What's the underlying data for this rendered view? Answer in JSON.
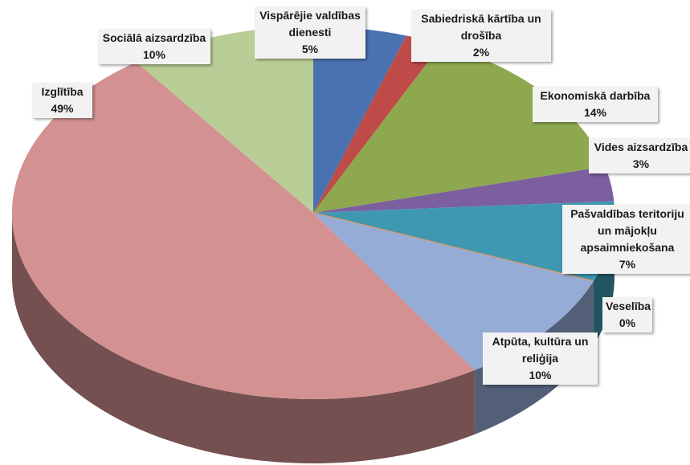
{
  "chart_data": {
    "type": "pie",
    "categories": [
      "Vispārējie valdības dienesti",
      "Sabiedriskā kārtība un drošība",
      "Ekonomiskā darbība",
      "Vides aizsardzība",
      "Pašvaldības teritoriju un mājokļu apsaimniekošana",
      "Veselība",
      "Atpūta, kultūra un reliģija",
      "Izglītība",
      "Sociālā aizsardzība"
    ],
    "values": [
      5,
      2,
      14,
      3,
      7,
      0,
      10,
      49,
      10
    ],
    "value_labels": [
      "5%",
      "2%",
      "14%",
      "3%",
      "7%",
      "0%",
      "10%",
      "49%",
      "10%"
    ],
    "colors": [
      "#4a72b0",
      "#be4b48",
      "#8ea84f",
      "#7c5f9e",
      "#3f98b2",
      "#f79646",
      "#95acd6",
      "#d39191",
      "#b9cd96"
    ]
  }
}
